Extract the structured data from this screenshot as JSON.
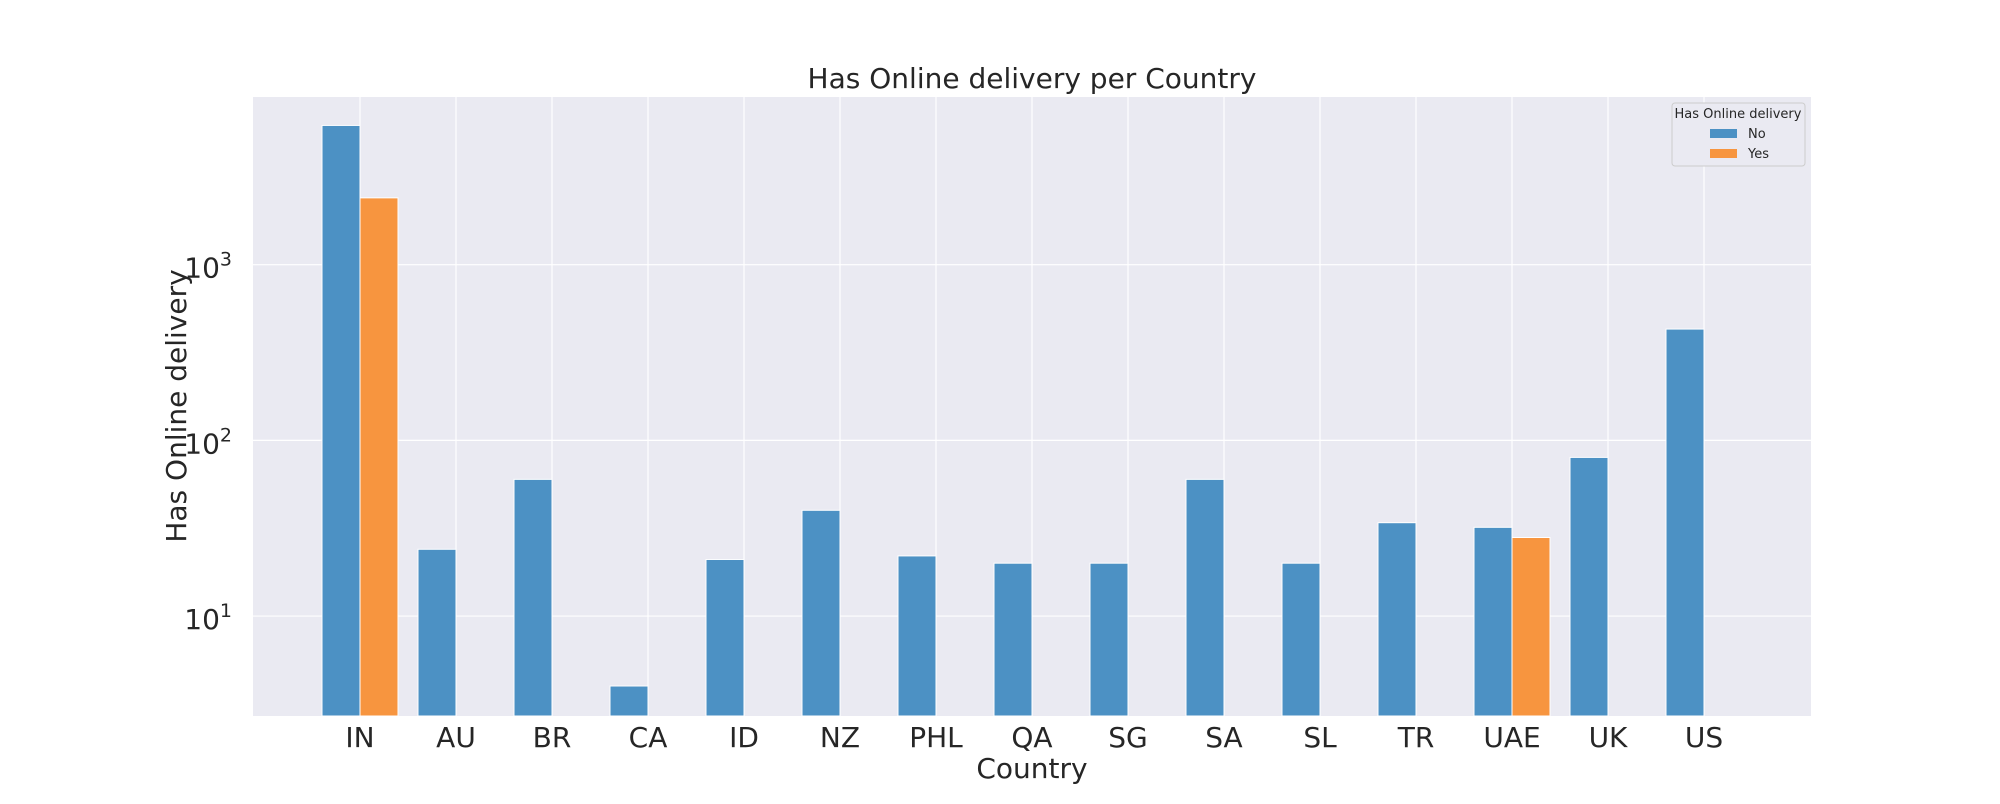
{
  "chart_data": {
    "type": "bar",
    "title": "Has Online delivery per Country",
    "xlabel": "Country",
    "ylabel": "Has Online delivery",
    "yscale": "log",
    "ylim": [
      2.7,
      9000
    ],
    "yticks": [
      {
        "value": 10,
        "base": "10",
        "exp": "1"
      },
      {
        "value": 100,
        "base": "10",
        "exp": "2"
      },
      {
        "value": 1000,
        "base": "10",
        "exp": "3"
      }
    ],
    "grid": true,
    "legend": {
      "title": "Has Online delivery",
      "placement": "top-right"
    },
    "categories": [
      "IN",
      "AU",
      "BR",
      "CA",
      "ID",
      "NZ",
      "PHL",
      "QA",
      "SG",
      "SA",
      "SL",
      "TR",
      "UAE",
      "UK",
      "US"
    ],
    "series": [
      {
        "name": "No",
        "color": "#4c91c4",
        "values": [
          6200,
          24,
          60,
          4,
          21,
          40,
          22,
          20,
          20,
          60,
          20,
          34,
          32,
          80,
          430
        ]
      },
      {
        "name": "Yes",
        "color": "#f7953f",
        "values": [
          2400,
          null,
          null,
          null,
          null,
          null,
          null,
          null,
          null,
          null,
          null,
          null,
          28,
          null,
          null
        ]
      }
    ]
  }
}
